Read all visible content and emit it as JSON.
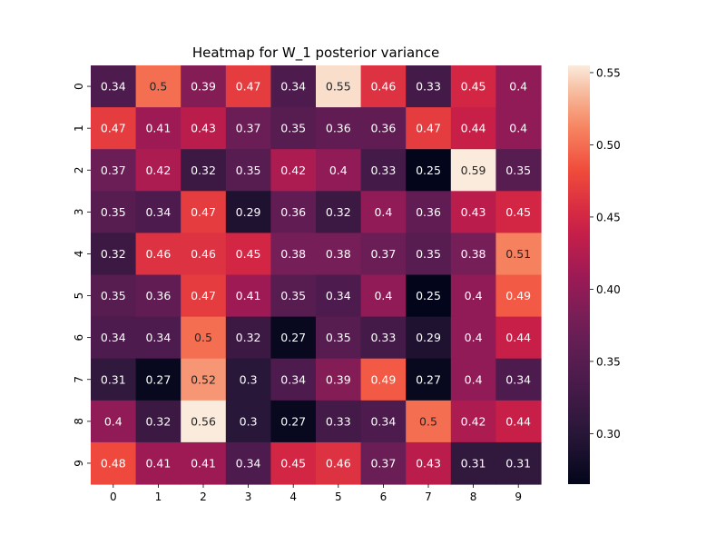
{
  "chart_data": {
    "type": "heatmap",
    "title": "Heatmap for W_1 posterior variance",
    "xlabel": "",
    "ylabel": "",
    "x_categories": [
      "0",
      "1",
      "2",
      "3",
      "4",
      "5",
      "6",
      "7",
      "8",
      "9"
    ],
    "y_categories": [
      "0",
      "1",
      "2",
      "3",
      "4",
      "5",
      "6",
      "7",
      "8",
      "9"
    ],
    "values": [
      [
        0.34,
        0.5,
        0.39,
        0.47,
        0.34,
        0.55,
        0.46,
        0.33,
        0.45,
        0.4
      ],
      [
        0.47,
        0.41,
        0.43,
        0.37,
        0.35,
        0.36,
        0.36,
        0.47,
        0.44,
        0.4
      ],
      [
        0.37,
        0.42,
        0.32,
        0.35,
        0.42,
        0.4,
        0.33,
        0.25,
        0.59,
        0.35
      ],
      [
        0.35,
        0.34,
        0.47,
        0.29,
        0.36,
        0.32,
        0.4,
        0.36,
        0.43,
        0.45
      ],
      [
        0.32,
        0.46,
        0.46,
        0.45,
        0.38,
        0.38,
        0.37,
        0.35,
        0.38,
        0.51
      ],
      [
        0.35,
        0.36,
        0.47,
        0.41,
        0.35,
        0.34,
        0.4,
        0.25,
        0.4,
        0.49
      ],
      [
        0.34,
        0.34,
        0.5,
        0.32,
        0.27,
        0.35,
        0.33,
        0.29,
        0.4,
        0.44
      ],
      [
        0.31,
        0.27,
        0.52,
        0.3,
        0.34,
        0.39,
        0.49,
        0.27,
        0.4,
        0.34
      ],
      [
        0.4,
        0.32,
        0.56,
        0.3,
        0.27,
        0.33,
        0.34,
        0.5,
        0.42,
        0.44
      ],
      [
        0.48,
        0.41,
        0.41,
        0.34,
        0.45,
        0.46,
        0.37,
        0.43,
        0.31,
        0.31
      ]
    ],
    "colormap": "rocket",
    "color_range": [
      0.265,
      0.555
    ],
    "colorbar_ticks": [
      "0.30",
      "0.35",
      "0.40",
      "0.45",
      "0.50",
      "0.55"
    ],
    "colorbar_tick_values": [
      0.3,
      0.35,
      0.4,
      0.45,
      0.5,
      0.55
    ],
    "grid": false,
    "annotated": true
  }
}
